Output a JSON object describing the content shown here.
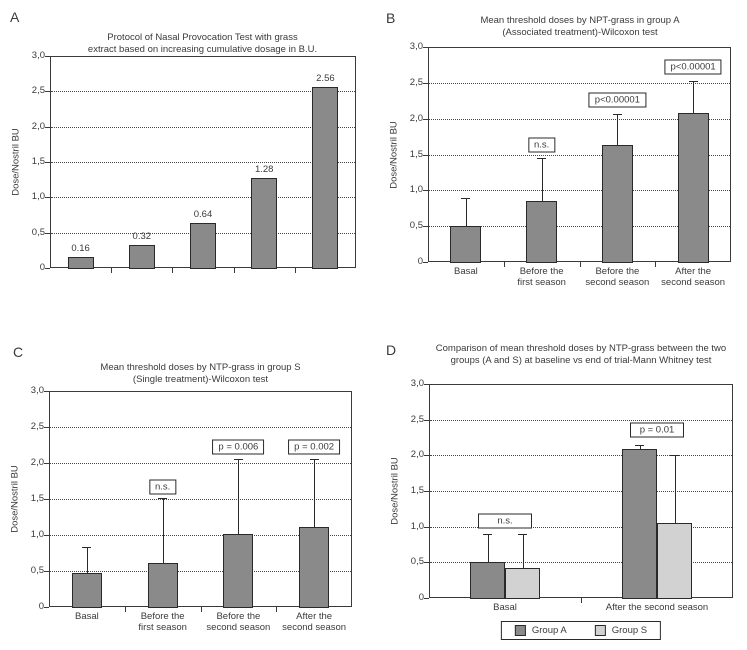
{
  "colors": {
    "bar_dark": "#8a8a8a",
    "bar_light": "#d2d2d2",
    "axis": "#3a3a3a",
    "background": "#ffffff"
  },
  "chart_data": [
    {
      "panel": "A",
      "type": "bar",
      "title": "Protocol of Nasal Provocation Test with grass extract based on increasing cumulative dosage in B.U.",
      "title_lines": [
        "Protocol of Nasal Provocation Test with grass",
        "extract based on increasing cumulative dosage in B.U."
      ],
      "ylabel": "Dose/Nostril BU",
      "ylim": [
        0,
        3
      ],
      "ytick_values": [
        0,
        0.5,
        1,
        1.5,
        2,
        2.5,
        3
      ],
      "ytick_labels": [
        "0",
        "0,5",
        "1,0",
        "1,5",
        "2,0",
        "2,5",
        "3,0"
      ],
      "grid": "dotted horizontal",
      "categories": [
        "",
        "",
        "",
        "",
        ""
      ],
      "values": [
        0.16,
        0.32,
        0.64,
        1.28,
        2.56
      ],
      "bar_labels": [
        "0.16",
        "0.32",
        "0.64",
        "1.28",
        "2.56"
      ]
    },
    {
      "panel": "B",
      "type": "bar",
      "title": "Mean threshold doses by NPT-grass in group A (Associated treatment)-Wilcoxon test",
      "title_lines": [
        "Mean threshold doses by NPT-grass in group A",
        "(Associated treatment)-Wilcoxon test"
      ],
      "ylabel": "Dose/Nostril BU",
      "ylim": [
        0,
        3
      ],
      "ytick_values": [
        0,
        0.5,
        1,
        1.5,
        2,
        2.5,
        3
      ],
      "ytick_labels": [
        "0",
        "0,5",
        "1,0",
        "1,5",
        "2,0",
        "2,5",
        "3,0"
      ],
      "grid": "dotted horizontal",
      "categories": [
        [
          "Basal"
        ],
        [
          "Before the",
          "first season"
        ],
        [
          "Before the",
          "second season"
        ],
        [
          "After the",
          "second season"
        ]
      ],
      "values": [
        0.5,
        0.85,
        1.63,
        2.08
      ],
      "error_top": [
        0.9,
        1.45,
        2.07,
        2.52
      ],
      "annotations": [
        null,
        {
          "text": "n.s.",
          "y": 1.63
        },
        {
          "text": "p<0.00001",
          "y": 2.26
        },
        {
          "text": "p<0.00001",
          "y": 2.72
        }
      ]
    },
    {
      "panel": "C",
      "type": "bar",
      "title": "Mean threshold doses by NTP-grass in group S (Single treatment)-Wilcoxon test",
      "title_lines": [
        "Mean threshold doses by NTP-grass in group S",
        "(Single treatment)-Wilcoxon test"
      ],
      "ylabel": "Dose/Nostril BU",
      "ylim": [
        0,
        3
      ],
      "ytick_values": [
        0,
        0.5,
        1,
        1.5,
        2,
        2.5,
        3
      ],
      "ytick_labels": [
        "0",
        "0,5",
        "1,0",
        "1,5",
        "2,0",
        "2,5",
        "3,0"
      ],
      "grid": "dotted horizontal",
      "categories": [
        [
          "Basal"
        ],
        [
          "Before the",
          "first season"
        ],
        [
          "Before the",
          "second season"
        ],
        [
          "After the",
          "second season"
        ]
      ],
      "values": [
        0.47,
        0.61,
        1.01,
        1.11
      ],
      "error_top": [
        0.83,
        1.52,
        2.06,
        2.06
      ],
      "annotations": [
        null,
        {
          "text": "n.s.",
          "y": 1.67
        },
        {
          "text": "p = 0.006",
          "y": 2.22
        },
        {
          "text": "p = 0.002",
          "y": 2.22
        }
      ]
    },
    {
      "panel": "D",
      "type": "bar",
      "title": "Comparison of mean threshold doses by NTP-grass between the two groups (A and S) at baseline vs end of trial-Mann Whitney test",
      "title_lines": [
        "Comparison of mean threshold doses by NTP-grass between the two",
        "groups (A and S) at baseline vs end of trial-Mann Whitney test"
      ],
      "ylabel": "Dose/Nostril BU",
      "ylim": [
        0,
        3
      ],
      "ytick_values": [
        0,
        0.5,
        1,
        1.5,
        2,
        2.5,
        3
      ],
      "ytick_labels": [
        "0",
        "0,5",
        "1,0",
        "1,5",
        "2,0",
        "2,5",
        "3,0"
      ],
      "grid": "dotted horizontal",
      "categories": [
        [
          "Basal"
        ],
        [
          "After the second season"
        ]
      ],
      "series": [
        {
          "name": "Group A",
          "color": "#8a8a8a",
          "values": [
            0.5,
            2.09
          ],
          "error_top": [
            0.9,
            2.15
          ]
        },
        {
          "name": "Group S",
          "color": "#d2d2d2",
          "values": [
            0.42,
            1.05
          ],
          "error_top": [
            0.9,
            2.0
          ]
        }
      ],
      "annotations": [
        {
          "text": "n.s.",
          "y": 1.08,
          "span": "category"
        },
        {
          "text": "p = 0.01",
          "y": 2.35,
          "span": "category"
        }
      ],
      "legend": {
        "position": "bottom",
        "entries": [
          "Group A",
          "Group S"
        ]
      }
    }
  ]
}
